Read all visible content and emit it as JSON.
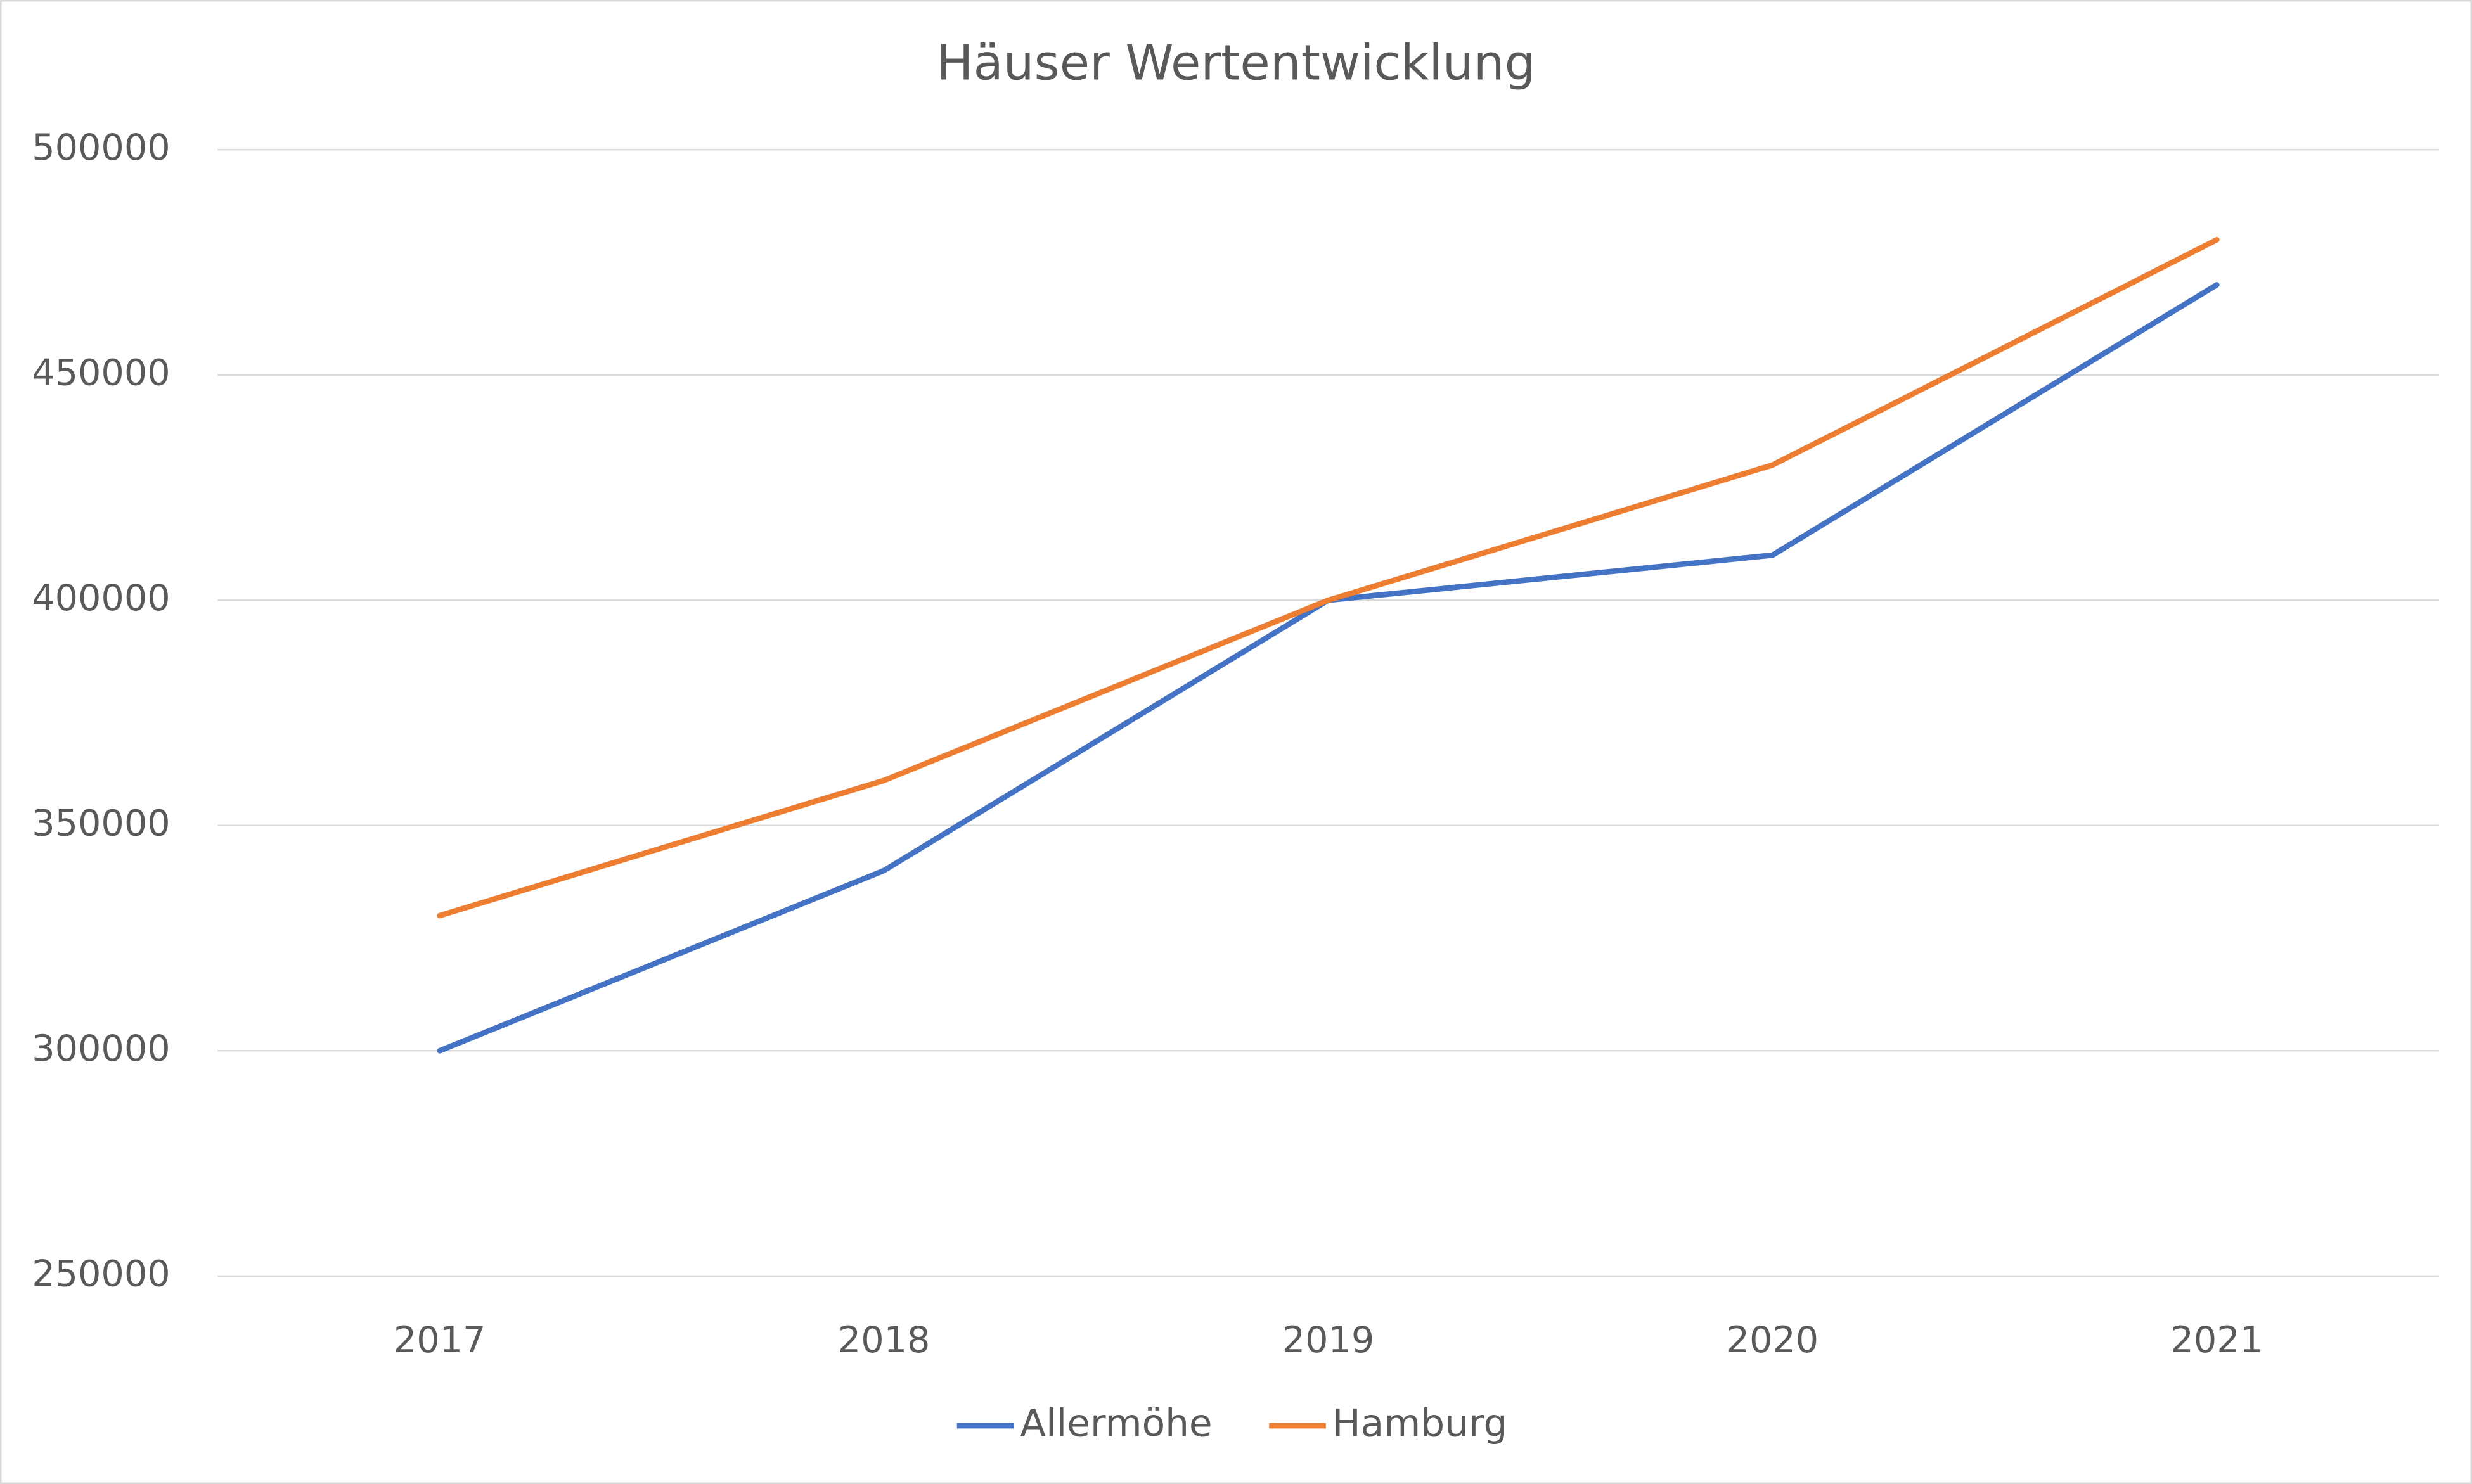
{
  "chart_data": {
    "type": "line",
    "title": "Häuser Wertentwicklung",
    "categories": [
      "2017",
      "2018",
      "2019",
      "2020",
      "2021"
    ],
    "series": [
      {
        "name": "Allermöhe",
        "color": "#4472c4",
        "values": [
          300000,
          340000,
          400000,
          410000,
          470000
        ]
      },
      {
        "name": "Hamburg",
        "color": "#ed7d31",
        "values": [
          330000,
          360000,
          400000,
          430000,
          480000
        ]
      }
    ],
    "ylim": [
      250000,
      500000
    ],
    "yticks": [
      250000,
      300000,
      350000,
      400000,
      450000,
      500000
    ],
    "grid": true,
    "legend": "bottom"
  }
}
